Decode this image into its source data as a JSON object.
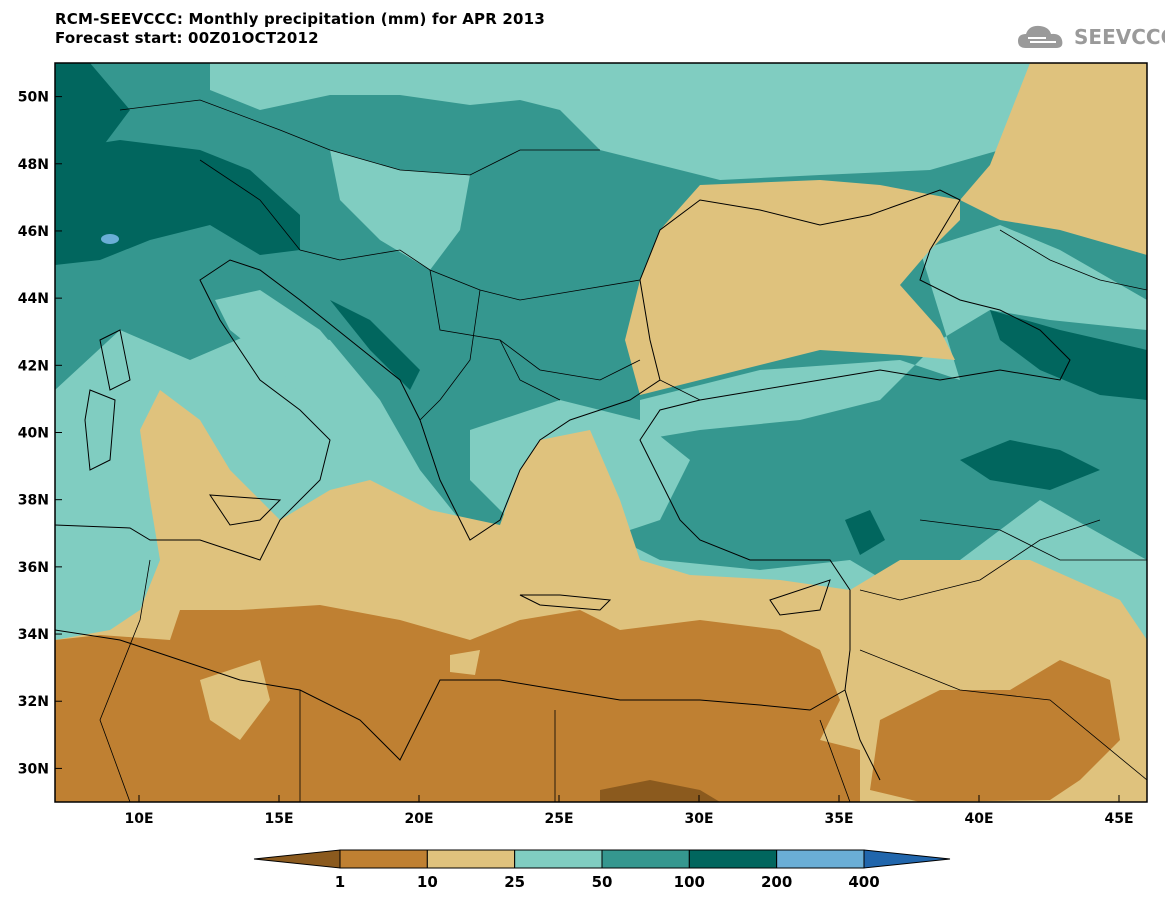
{
  "header": {
    "title_line1": "RCM-SEEVCCC: Monthly precipitation (mm) for APR 2013",
    "title_line2": "Forecast start: 00Z01OCT2012",
    "logo_text": "SEEVCCC",
    "logo_icon": "cloud-icon"
  },
  "chart_data": {
    "type": "heatmap",
    "title": "RCM-SEEVCCC: Monthly precipitation (mm) for APR 2013",
    "subtitle": "Forecast start: 00Z01OCT2012",
    "variable": "Monthly precipitation (mm)",
    "xlim": [
      7,
      46
    ],
    "ylim": [
      29,
      51
    ],
    "x_ticks": [
      10,
      15,
      20,
      25,
      30,
      35,
      40,
      45
    ],
    "x_tick_labels": [
      "10E",
      "15E",
      "20E",
      "25E",
      "30E",
      "35E",
      "40E",
      "45E"
    ],
    "y_ticks": [
      30,
      32,
      34,
      36,
      38,
      40,
      42,
      44,
      46,
      48,
      50
    ],
    "y_tick_labels": [
      "30N",
      "32N",
      "34N",
      "36N",
      "38N",
      "40N",
      "42N",
      "44N",
      "46N",
      "48N",
      "50N"
    ],
    "colorbar": {
      "levels": [
        1,
        10,
        25,
        50,
        100,
        200,
        400
      ],
      "level_labels": [
        "1",
        "10",
        "25",
        "50",
        "100",
        "200",
        "400"
      ],
      "colors": [
        "#8b5a1e",
        "#bf8032",
        "#dfc27d",
        "#80cdc1",
        "#35978f",
        "#01665e",
        "#6aaed6",
        "#2166ac"
      ]
    },
    "grid": false
  },
  "colors": {
    "c_lt1": "#8b5a1e",
    "c_1_10": "#bf8032",
    "c_10_25": "#dfc27d",
    "c_25_50": "#80cdc1",
    "c_50_100": "#35978f",
    "c_100_200": "#01665e",
    "c_200_400": "#6aaed6",
    "c_gt400": "#2166ac",
    "logo": "#9a9a9a"
  }
}
